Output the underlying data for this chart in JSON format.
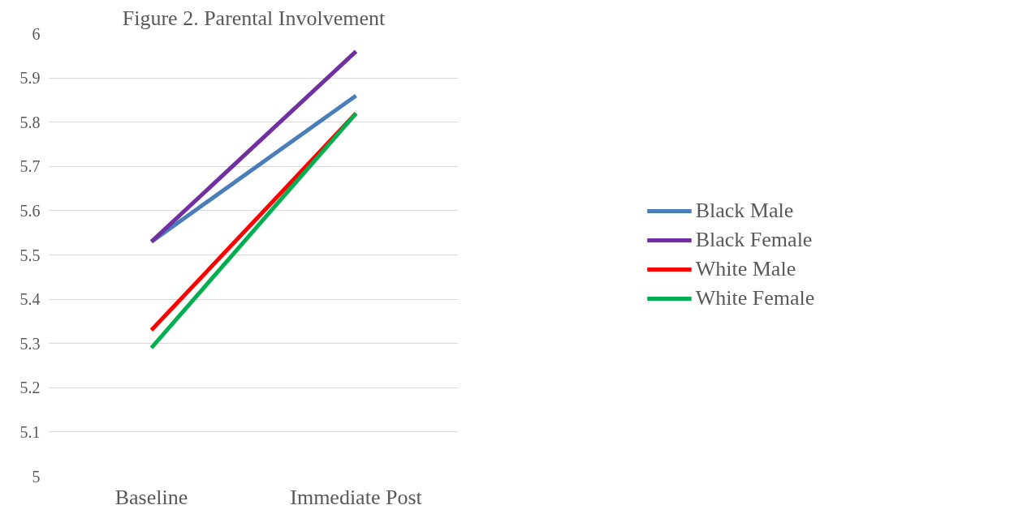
{
  "chart_data": {
    "type": "line",
    "title": "Figure 2. Parental Involvement",
    "categories": [
      "Baseline",
      "Immediate Post"
    ],
    "series": [
      {
        "name": "Black Male",
        "color": "#4a7ebb",
        "values": [
          5.53,
          5.86
        ]
      },
      {
        "name": "Black Female",
        "color": "#7030a0",
        "values": [
          5.53,
          5.96
        ]
      },
      {
        "name": "White Male",
        "color": "#ff0000",
        "values": [
          5.33,
          5.82
        ]
      },
      {
        "name": "White Female",
        "color": "#00b050",
        "values": [
          5.29,
          5.82
        ]
      }
    ],
    "ylim": [
      5,
      6
    ],
    "yticks": [
      5,
      5.1,
      5.2,
      5.3,
      5.4,
      5.5,
      5.6,
      5.7,
      5.8,
      5.9,
      6
    ],
    "grid": "y",
    "legend": "right",
    "marker": "none",
    "line_style": "solid"
  }
}
